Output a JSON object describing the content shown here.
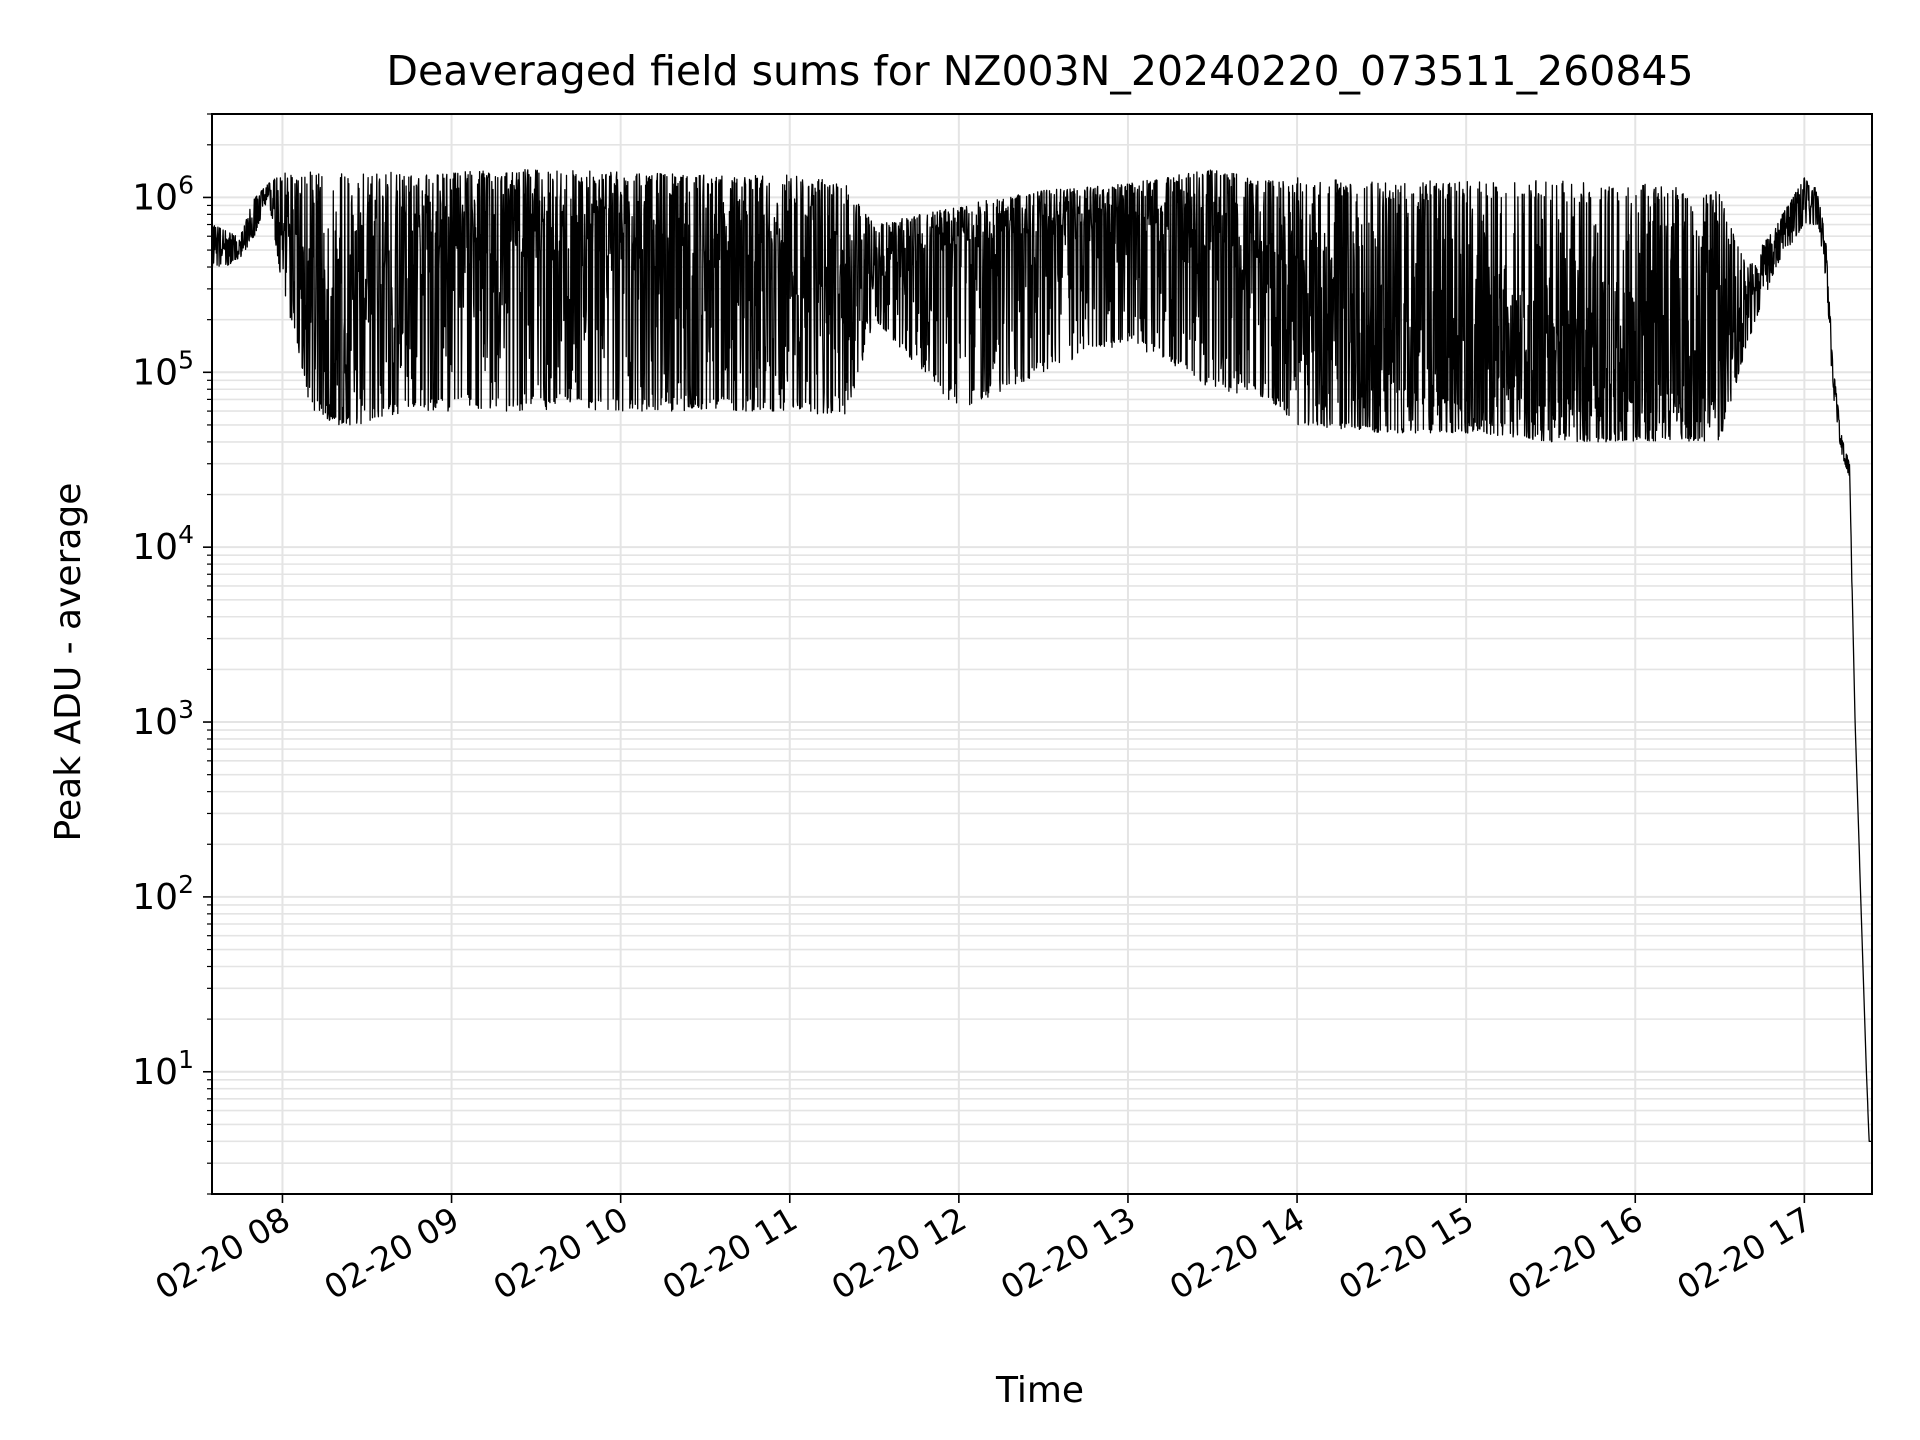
{
  "chart_data": {
    "type": "line",
    "title": "Deaveraged field sums for NZ003N_20240220_073511_260845",
    "xlabel": "Time",
    "ylabel": "Peak ADU - average",
    "yscale": "log",
    "grid": "major and minor (both axes)",
    "line_color": "#000000",
    "xlim": [
      "2024-02-20 07:35",
      "2024-02-20 17:24"
    ],
    "ylim": [
      2,
      3000000
    ],
    "x_ticks": [
      "02-20 08",
      "02-20 09",
      "02-20 10",
      "02-20 11",
      "02-20 12",
      "02-20 13",
      "02-20 14",
      "02-20 15",
      "02-20 16",
      "02-20 17"
    ],
    "y_ticks": [
      {
        "base": "10",
        "exp": "1",
        "value": 10
      },
      {
        "base": "10",
        "exp": "2",
        "value": 100
      },
      {
        "base": "10",
        "exp": "3",
        "value": 1000
      },
      {
        "base": "10",
        "exp": "4",
        "value": 10000
      },
      {
        "base": "10",
        "exp": "5",
        "value": 100000
      },
      {
        "base": "10",
        "exp": "6",
        "value": 1000000
      }
    ],
    "series": [
      {
        "x": [
          "2024-02-20 07:35",
          "2024-02-20 07:40",
          "2024-02-20 07:45",
          "2024-02-20 07:50",
          "2024-02-20 07:55",
          "2024-02-20 08:00",
          "2024-02-20 08:05",
          "2024-02-20 08:10",
          "2024-02-20 08:20",
          "2024-02-20 08:30",
          "2024-02-20 08:45",
          "2024-02-20 09:00",
          "2024-02-20 09:30",
          "2024-02-20 10:00",
          "2024-02-20 10:30",
          "2024-02-20 11:00",
          "2024-02-20 11:20",
          "2024-02-20 11:30",
          "2024-02-20 12:00",
          "2024-02-20 12:30",
          "2024-02-20 13:00",
          "2024-02-20 13:30",
          "2024-02-20 13:50",
          "2024-02-20 14:00",
          "2024-02-20 14:30",
          "2024-02-20 15:00",
          "2024-02-20 15:30",
          "2024-02-20 16:00",
          "2024-02-20 16:30",
          "2024-02-20 16:40",
          "2024-02-20 16:50",
          "2024-02-20 17:00",
          "2024-02-20 17:05",
          "2024-02-20 17:08",
          "2024-02-20 17:10",
          "2024-02-20 17:13",
          "2024-02-20 17:16",
          "2024-02-20 17:18",
          "2024-02-20 17:20",
          "2024-02-20 17:22",
          "2024-02-20 17:23",
          "2024-02-20 17:24"
        ],
        "y": [
          550000,
          500000,
          500000,
          700000,
          1100000,
          600000,
          300000,
          200000,
          120000,
          300000,
          400000,
          500000,
          500000,
          400000,
          350000,
          300000,
          200000,
          400000,
          500000,
          600000,
          600000,
          500000,
          400000,
          150000,
          100000,
          80000,
          70000,
          75000,
          100000,
          250000,
          500000,
          1000000,
          900000,
          400000,
          100000,
          40000,
          30000,
          1000,
          100,
          10,
          4,
          4
        ],
        "band_upper": [
          700000,
          650000,
          600000,
          1000000,
          1200000,
          1400000,
          1350000,
          1400000,
          1400000,
          1400000,
          1400000,
          1400000,
          1450000,
          1400000,
          1350000,
          1350000,
          1250000,
          700000,
          900000,
          1100000,
          1200000,
          1450000,
          1250000,
          1300000,
          1250000,
          1250000,
          1250000,
          1200000,
          1100000,
          400000,
          700000,
          1300000,
          1100000,
          500000,
          120000,
          45000,
          30000,
          1000,
          100,
          10,
          4,
          4
        ],
        "band_lower": [
          400000,
          400000,
          450000,
          600000,
          1000000,
          300000,
          150000,
          60000,
          50000,
          50000,
          60000,
          60000,
          60000,
          60000,
          60000,
          60000,
          55000,
          200000,
          60000,
          100000,
          150000,
          80000,
          70000,
          50000,
          45000,
          45000,
          40000,
          40000,
          40000,
          150000,
          400000,
          700000,
          700000,
          300000,
          80000,
          35000,
          25000,
          1000,
          100,
          10,
          4,
          4
        ]
      }
    ]
  }
}
